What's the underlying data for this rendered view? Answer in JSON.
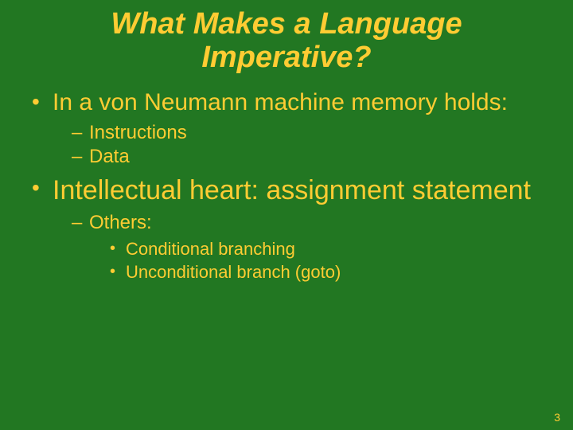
{
  "background_color": "#227722",
  "text_color": "#ffcc33",
  "font_family": "Comic Sans MS",
  "title": {
    "line1": "What Makes a Language",
    "line2": "Imperative?",
    "font_style": "italic",
    "font_weight": "bold",
    "font_size_pt": 38
  },
  "bullets": [
    {
      "text": "In a von Neumann machine memory holds:",
      "font_size_pt": 30,
      "sub": [
        {
          "text": "Instructions",
          "font_size_pt": 24
        },
        {
          "text": "Data",
          "font_size_pt": 24
        }
      ]
    },
    {
      "text": "Intellectual heart: assignment statement",
      "font_size_pt": 34,
      "sub": [
        {
          "text": "Others:",
          "font_size_pt": 24,
          "sub": [
            {
              "text": "Conditional branching",
              "font_size_pt": 22
            },
            {
              "text": "Unconditional branch (goto)",
              "font_size_pt": 22
            }
          ]
        }
      ]
    }
  ],
  "page_number": "3"
}
